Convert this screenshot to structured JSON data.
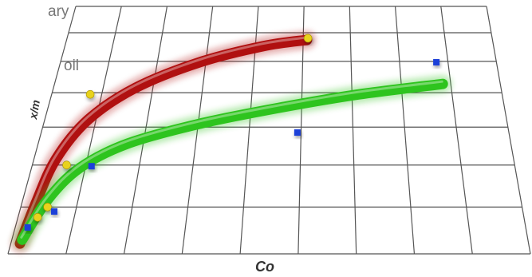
{
  "chart_data": {
    "type": "scatter",
    "xlabel": "Co",
    "ylabel": "x/m",
    "annotations": [
      "ary",
      "oil"
    ],
    "xlim": [
      0,
      9
    ],
    "ylim": [
      0,
      7
    ],
    "xticks": [
      0,
      1,
      2,
      3,
      4,
      5,
      6,
      7,
      8,
      9
    ],
    "yticks": [
      0,
      1,
      2,
      3,
      4,
      5,
      6,
      7
    ],
    "tick_labels": false,
    "grid": true,
    "perspective": true,
    "series": [
      {
        "kind": "line",
        "color": "#b01010",
        "x": [
          0.16,
          0.25,
          0.41,
          0.84,
          1.65,
          2.87,
          4.16,
          5.08
        ],
        "values": [
          0.21,
          1.08,
          2.14,
          3.2,
          4.15,
          4.97,
          5.52,
          5.74
        ]
      },
      {
        "kind": "line",
        "color": "#2ec41e",
        "x": [
          0.18,
          0.45,
          0.9,
          1.7,
          3.02,
          4.56,
          6.14,
          7.84
        ],
        "values": [
          0.29,
          1.17,
          1.93,
          2.55,
          3.09,
          3.55,
          3.95,
          4.27
        ]
      },
      {
        "kind": "circle",
        "color": "#e8d21a",
        "x": [
          5.1,
          0.77,
          0.64,
          0.48,
          0.35
        ],
        "values": [
          5.8,
          3.95,
          2.0,
          1.0,
          0.77
        ]
      },
      {
        "kind": "square",
        "color": "#1a3fd8",
        "x": [
          7.76,
          4.93,
          1.11,
          0.62,
          0.22
        ],
        "values": [
          4.97,
          2.85,
          1.97,
          0.9,
          0.55
        ]
      }
    ]
  }
}
